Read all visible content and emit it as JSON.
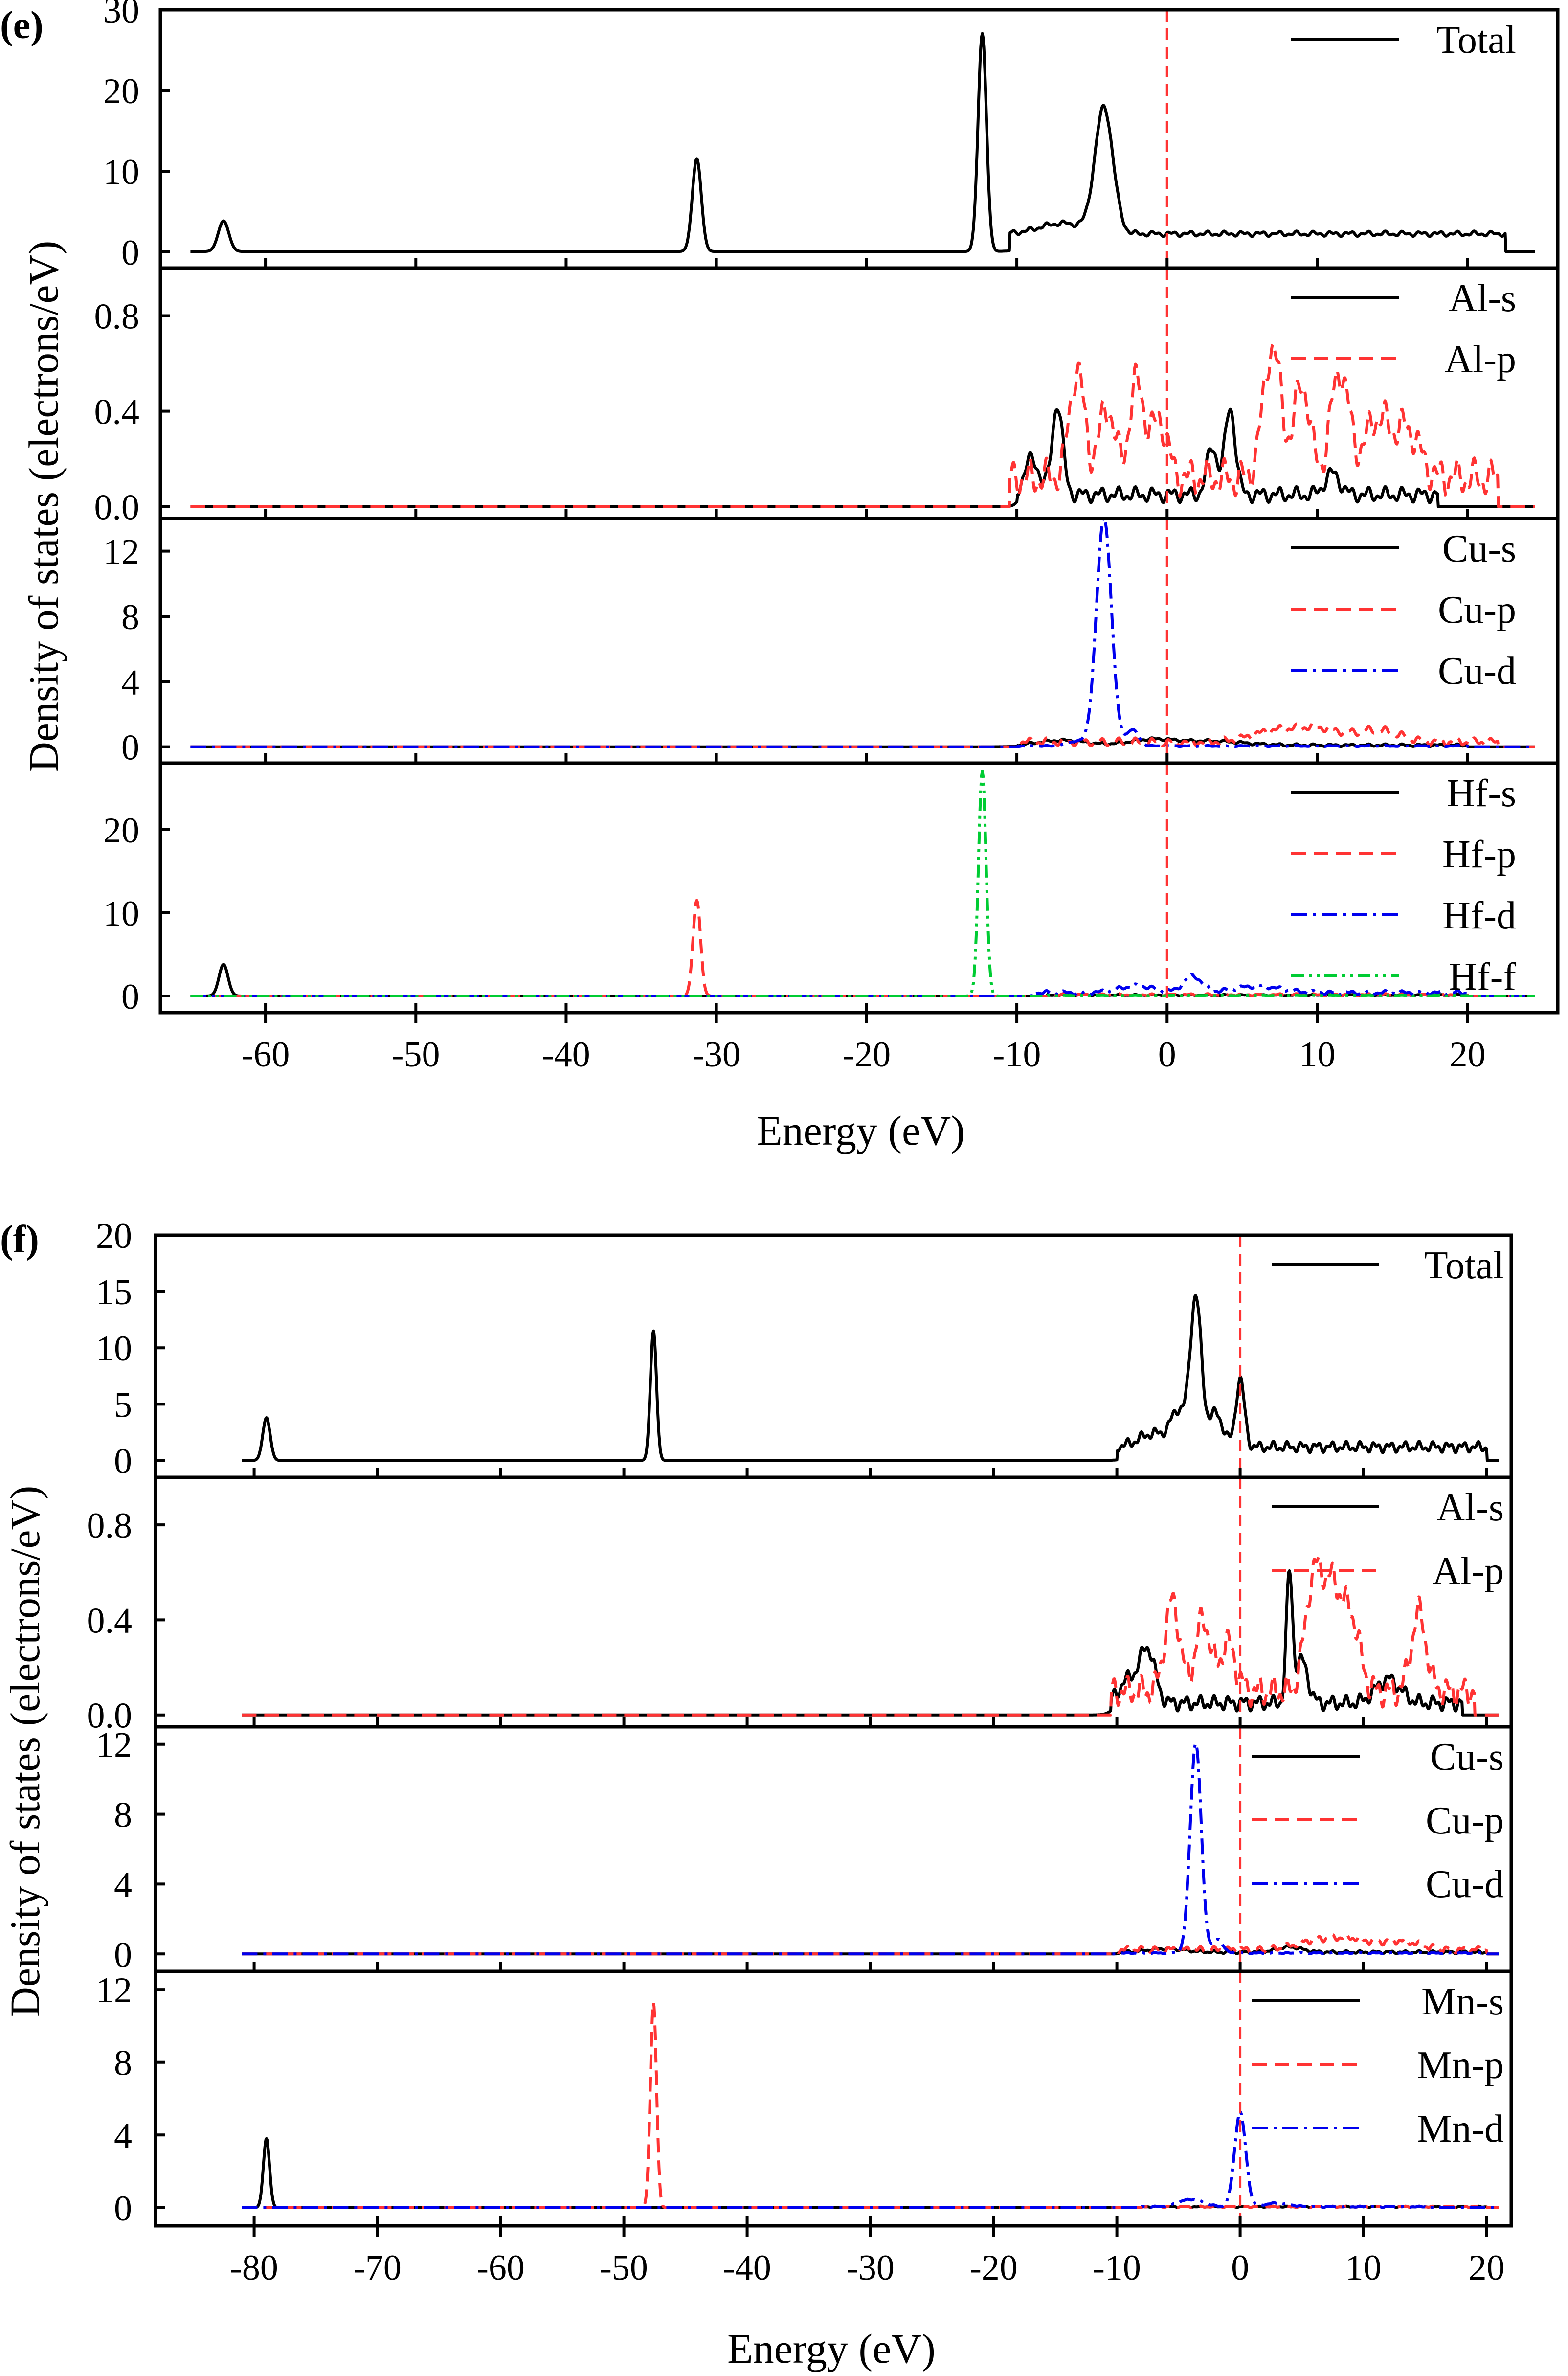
{
  "chart_data": [
    {
      "type": "line",
      "panel_letter": "(e)",
      "xlabel": "Energy (eV)",
      "ylabel": "Density of states (electrons/eV)",
      "xlim": [
        -67,
        26
      ],
      "x_ticks": [
        -60,
        -50,
        -40,
        -30,
        -20,
        -10,
        0,
        10,
        20
      ],
      "x_tick_labels": [
        "-60",
        "-50",
        "-40",
        "-30",
        "-20",
        "-10",
        "0",
        "10",
        "20"
      ],
      "fermi_level": 0,
      "subplots": [
        {
          "ylim": [
            -2,
            30
          ],
          "y_ticks": [
            0,
            10,
            20,
            30
          ],
          "y_tick_labels": [
            "0",
            "10",
            "20",
            "30"
          ],
          "series": [
            {
              "name": "Total",
              "style": "solid",
              "color": "#000000",
              "x_range": [
                -65,
                24.5
              ],
              "baseline": 0.05,
              "peaks": [
                [
                  -62.8,
                  3.8,
                  0.35
                ],
                [
                  -31.3,
                  11.5,
                  0.3
                ],
                [
                  -12.3,
                  27,
                  0.28
                ],
                [
                  -4.2,
                  15.5,
                  0.6
                ],
                [
                  -7,
                  1.3,
                  1.5
                ]
              ],
              "band": [
                -10.5,
                22.5,
                2.2,
                0.2
              ]
            }
          ]
        },
        {
          "ylim": [
            -0.05,
            1.0
          ],
          "y_ticks": [
            0.0,
            0.4,
            0.8
          ],
          "y_tick_labels": [
            "0.0",
            "0.4",
            "0.8"
          ],
          "series": [
            {
              "name": "Al-s",
              "style": "solid",
              "color": "#000000",
              "x_range": [
                -65,
                24.5
              ],
              "baseline": 0.0,
              "peaks": [
                [
                  -7.3,
                  0.38,
                  0.35
                ],
                [
                  -9,
                  0.15,
                  0.5
                ],
                [
                  4.2,
                  0.36,
                  0.35
                ],
                [
                  3,
                  0.2,
                  0.35
                ],
                [
                  11,
                  0.09,
                  0.5
                ]
              ],
              "band": [
                -10,
                18,
                0.05,
                0.02
              ]
            },
            {
              "name": "Al-p",
              "style": "dashed",
              "color": "#ff3333",
              "x_range": [
                -65,
                24.5
              ],
              "baseline": 0.0,
              "peaks": [
                [
                  -6,
                  0.45,
                  0.5
                ],
                [
                  -4,
                  0.3,
                  0.5
                ],
                [
                  -2,
                  0.4,
                  0.5
                ],
                [
                  -0.5,
                  0.25,
                  0.5
                ],
                [
                  7,
                  0.55,
                  0.6
                ],
                [
                  9,
                  0.4,
                  0.5
                ],
                [
                  11.5,
                  0.45,
                  0.6
                ],
                [
                  14,
                  0.25,
                  0.8
                ],
                [
                  16,
                  0.2,
                  0.8
                ]
              ],
              "band": [
                -10.5,
                22,
                0.12,
                0.05
              ]
            }
          ]
        },
        {
          "ylim": [
            -1,
            14
          ],
          "y_ticks": [
            0,
            4,
            8,
            12
          ],
          "y_tick_labels": [
            "0",
            "4",
            "8",
            "12"
          ],
          "series": [
            {
              "name": "Cu-s",
              "style": "solid",
              "color": "#000000",
              "x_range": [
                -65,
                24.5
              ],
              "baseline": 0.0,
              "peaks": [
                [
                  -7,
                  0.3,
                  1.5
                ],
                [
                  -1,
                  0.35,
                  1.5
                ],
                [
                  3,
                  0.25,
                  2
                ]
              ],
              "band": [
                -10,
                20,
                0.1,
                0.05
              ]
            },
            {
              "name": "Cu-p",
              "style": "dashed",
              "color": "#ff3333",
              "x_range": [
                -65,
                24.5
              ],
              "baseline": 0.0,
              "peaks": [
                [
                  7,
                  0.6,
                  1.5
                ],
                [
                  10,
                  0.8,
                  1.5
                ],
                [
                  14,
                  0.7,
                  1.5
                ]
              ],
              "band": [
                -10,
                22,
                0.3,
                0.15
              ]
            },
            {
              "name": "Cu-d",
              "style": "dashdot",
              "color": "#0000ee",
              "x_range": [
                -65,
                24.5
              ],
              "baseline": 0.0,
              "peaks": [
                [
                  -4.2,
                  14,
                  0.5
                ],
                [
                  -2.3,
                  1.0,
                  0.4
                ],
                [
                  -6,
                  0.3,
                  0.6
                ]
              ],
              "band": [
                -10,
                20,
                0.05,
                0.02
              ]
            }
          ]
        },
        {
          "ylim": [
            -2,
            28
          ],
          "y_ticks": [
            0,
            10,
            20
          ],
          "y_tick_labels": [
            "0",
            "10",
            "20"
          ],
          "series": [
            {
              "name": "Hf-s",
              "style": "solid",
              "color": "#000000",
              "x_range": [
                -65,
                24.5
              ],
              "baseline": 0.0,
              "peaks": [
                [
                  -62.8,
                  3.8,
                  0.3
                ]
              ],
              "band": [
                -8,
                20,
                0.1,
                0.05
              ]
            },
            {
              "name": "Hf-p",
              "style": "dashed",
              "color": "#ff3333",
              "x_range": [
                -65,
                24.5
              ],
              "baseline": 0.0,
              "peaks": [
                [
                  -31.3,
                  11.5,
                  0.25
                ]
              ],
              "band": [
                -8,
                20,
                0.15,
                0.08
              ]
            },
            {
              "name": "Hf-d",
              "style": "dashdot",
              "color": "#0000ee",
              "x_range": [
                -65,
                24.5
              ],
              "baseline": 0.0,
              "peaks": [
                [
                  -2,
                  0.8,
                  1.2
                ],
                [
                  1.7,
                  2.0,
                  0.6
                ],
                [
                  6,
                  0.8,
                  1.5
                ]
              ],
              "band": [
                -9,
                20,
                0.4,
                0.15
              ]
            },
            {
              "name": "Hf-f",
              "style": "dashdotdot",
              "color": "#00cc33",
              "x_range": [
                -65,
                24.5
              ],
              "baseline": 0.0,
              "peaks": [
                [
                  -12.3,
                  27,
                  0.25
                ]
              ],
              "band": [
                -8,
                20,
                0.05,
                0.02
              ]
            }
          ]
        }
      ]
    },
    {
      "type": "line",
      "panel_letter": "(f)",
      "xlabel": "Energy (eV)",
      "ylabel": "Density of states (electrons/eV)",
      "xlim": [
        -88,
        22
      ],
      "x_ticks": [
        -80,
        -70,
        -60,
        -50,
        -40,
        -30,
        -20,
        -10,
        0,
        10,
        20
      ],
      "x_tick_labels": [
        "-80",
        "-70",
        "-60",
        "-50",
        "-40",
        "-30",
        "-20",
        "-10",
        "0",
        "10",
        "20"
      ],
      "fermi_level": 0,
      "subplots": [
        {
          "ylim": [
            -1.5,
            20
          ],
          "y_ticks": [
            0,
            5,
            10,
            15,
            20
          ],
          "y_tick_labels": [
            "0",
            "5",
            "10",
            "15",
            "20"
          ],
          "series": [
            {
              "name": "Total",
              "style": "solid",
              "color": "#000000",
              "x_range": [
                -81,
                21
              ],
              "baseline": 0.0,
              "peaks": [
                [
                  -79,
                  3.8,
                  0.3
                ],
                [
                  -47.6,
                  11.5,
                  0.25
                ],
                [
                  -3.6,
                  13.2,
                  0.45
                ],
                [
                  -5,
                  3,
                  0.6
                ],
                [
                  -2,
                  3,
                  0.6
                ],
                [
                  0,
                  6,
                  0.35
                ],
                [
                  -7,
                  1.2,
                  1.2
                ]
              ],
              "band": [
                -10,
                20,
                1.2,
                0.3
              ]
            }
          ]
        },
        {
          "ylim": [
            -0.05,
            1.0
          ],
          "y_ticks": [
            0.0,
            0.4,
            0.8
          ],
          "y_tick_labels": [
            "0.0",
            "0.4",
            "0.8"
          ],
          "series": [
            {
              "name": "Al-s",
              "style": "solid",
              "color": "#000000",
              "x_range": [
                -81,
                21
              ],
              "baseline": 0.0,
              "peaks": [
                [
                  -7.5,
                  0.22,
                  0.6
                ],
                [
                  -9,
                  0.1,
                  0.8
                ],
                [
                  4,
                  0.53,
                  0.25
                ],
                [
                  5,
                  0.18,
                  0.5
                ],
                [
                  12,
                  0.1,
                  1
                ]
              ],
              "band": [
                -10.5,
                18,
                0.05,
                0.02
              ]
            },
            {
              "name": "Al-p",
              "style": "dashed",
              "color": "#ff3333",
              "x_range": [
                -81,
                21
              ],
              "baseline": 0.0,
              "peaks": [
                [
                  -5.5,
                  0.38,
                  0.6
                ],
                [
                  -3,
                  0.3,
                  0.6
                ],
                [
                  -1,
                  0.2,
                  0.6
                ],
                [
                  6,
                  0.48,
                  0.7
                ],
                [
                  7.5,
                  0.4,
                  0.7
                ],
                [
                  9,
                  0.3,
                  0.7
                ],
                [
                  14.5,
                  0.33,
                  0.6
                ]
              ],
              "band": [
                -10.5,
                19,
                0.1,
                0.04
              ]
            }
          ]
        },
        {
          "ylim": [
            -1,
            13
          ],
          "y_ticks": [
            0,
            4,
            8,
            12
          ],
          "y_tick_labels": [
            "0",
            "4",
            "8",
            "12"
          ],
          "series": [
            {
              "name": "Cu-s",
              "style": "solid",
              "color": "#000000",
              "x_range": [
                -81,
                21
              ],
              "baseline": 0.0,
              "peaks": [
                [
                  -6,
                  0.2,
                  1.5
                ],
                [
                  4,
                  0.3,
                  1.0
                ]
              ],
              "band": [
                -10,
                20,
                0.1,
                0.05
              ]
            },
            {
              "name": "Cu-p",
              "style": "dashed",
              "color": "#ff3333",
              "x_range": [
                -81,
                21
              ],
              "baseline": 0.0,
              "peaks": [
                [
                  6,
                  0.5,
                  1.5
                ],
                [
                  9,
                  0.6,
                  1.5
                ],
                [
                  13,
                  0.5,
                  1.5
                ]
              ],
              "band": [
                -10,
                20,
                0.25,
                0.12
              ]
            },
            {
              "name": "Cu-d",
              "style": "dashdot",
              "color": "#0000ee",
              "x_range": [
                -81,
                21
              ],
              "baseline": 0.0,
              "peaks": [
                [
                  -3.6,
                  12,
                  0.45
                ],
                [
                  -1.8,
                  0.8,
                  0.4
                ]
              ],
              "band": [
                -10,
                20,
                0.05,
                0.02
              ]
            }
          ]
        },
        {
          "ylim": [
            -1,
            13
          ],
          "y_ticks": [
            0,
            4,
            8,
            12
          ],
          "y_tick_labels": [
            "0",
            "4",
            "8",
            "12"
          ],
          "series": [
            {
              "name": "Mn-s",
              "style": "solid",
              "color": "#000000",
              "x_range": [
                -81,
                21
              ],
              "baseline": 0.0,
              "peaks": [
                [
                  -79,
                  3.8,
                  0.25
                ]
              ],
              "band": [
                -8,
                20,
                0.05,
                0.02
              ]
            },
            {
              "name": "Mn-p",
              "style": "dashed",
              "color": "#ff3333",
              "x_range": [
                -81,
                21
              ],
              "baseline": 0.0,
              "peaks": [
                [
                  -47.6,
                  11.3,
                  0.25
                ]
              ],
              "band": [
                -8,
                20,
                0.05,
                0.02
              ]
            },
            {
              "name": "Mn-d",
              "style": "dashdot",
              "color": "#0000ee",
              "x_range": [
                -81,
                21
              ],
              "baseline": 0.0,
              "peaks": [
                [
                  0,
                  5.2,
                  0.45
                ],
                [
                  -4,
                  0.4,
                  1.0
                ],
                [
                  3,
                  0.2,
                  1.0
                ]
              ],
              "band": [
                -8,
                15,
                0.05,
                0.02
              ]
            }
          ]
        }
      ]
    }
  ]
}
